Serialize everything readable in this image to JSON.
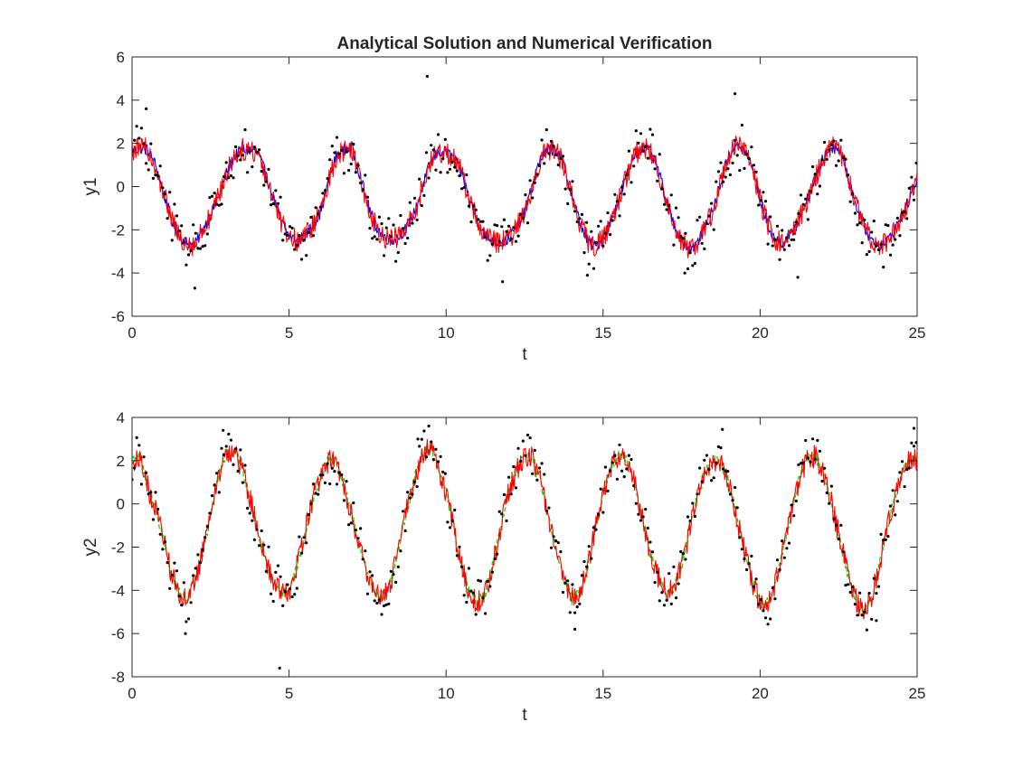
{
  "chart_data": [
    {
      "type": "line",
      "title": "Analytical Solution and Numerical Verification",
      "xlabel": "t",
      "ylabel": "y1",
      "xlim": [
        0,
        25
      ],
      "ylim": [
        -6,
        6
      ],
      "xticks": [
        0,
        5,
        10,
        15,
        20,
        25
      ],
      "yticks": [
        -6,
        -4,
        -2,
        0,
        2,
        4,
        6
      ],
      "grid": false,
      "legend": "none",
      "base": {
        "t": [
          0,
          0.25,
          0.5,
          0.75,
          1.0,
          1.25,
          1.5,
          1.75,
          2.0,
          2.25,
          2.5,
          2.75,
          3.0,
          3.25,
          3.5,
          3.75,
          4.0,
          4.25,
          4.5,
          4.75,
          5.0,
          5.25,
          5.5,
          5.75,
          6.0,
          6.25,
          6.5,
          6.75,
          7.0,
          7.25,
          7.5,
          7.75,
          8.0,
          8.25,
          8.5,
          8.75,
          9.0,
          9.25,
          9.5,
          9.75,
          10.0,
          10.25,
          10.5,
          10.75,
          11.0,
          11.25,
          11.5,
          11.75,
          12.0,
          12.25,
          12.5,
          12.75,
          13.0,
          13.25,
          13.5,
          13.75,
          14.0,
          14.25,
          14.5,
          14.75,
          15.0,
          15.25,
          15.5,
          15.75,
          16.0,
          16.25,
          16.5,
          16.75,
          17.0,
          17.25,
          17.5,
          17.75,
          18.0,
          18.25,
          18.5,
          18.75,
          19.0,
          19.25,
          19.5,
          19.75,
          20.0,
          20.25,
          20.5,
          20.75,
          21.0,
          21.25,
          21.5,
          21.75,
          22.0,
          22.25,
          22.5,
          22.75,
          23.0,
          23.25,
          23.5,
          23.75,
          24.0,
          24.25,
          24.5,
          24.75,
          25.0
        ],
        "y": [
          1.6,
          1.8,
          1.7,
          1.0,
          -0.3,
          -1.5,
          -2.3,
          -2.6,
          -2.7,
          -2.0,
          -1.3,
          -0.5,
          0.6,
          1.4,
          1.7,
          1.7,
          1.6,
          0.6,
          -0.5,
          -1.6,
          -2.3,
          -2.5,
          -2.3,
          -1.8,
          -1.2,
          0.2,
          1.4,
          1.7,
          1.8,
          0.6,
          -0.8,
          -1.8,
          -2.3,
          -2.5,
          -2.3,
          -1.9,
          -1.2,
          0.0,
          1.1,
          1.6,
          1.6,
          1.3,
          0.6,
          -0.6,
          -1.6,
          -2.3,
          -2.5,
          -2.6,
          -2.4,
          -1.9,
          -1.2,
          0.0,
          1.3,
          1.7,
          1.7,
          1.0,
          -0.4,
          -1.6,
          -2.5,
          -2.8,
          -2.4,
          -1.6,
          -0.6,
          0.5,
          1.5,
          1.8,
          1.6,
          0.8,
          -0.6,
          -1.7,
          -2.5,
          -2.9,
          -2.6,
          -1.9,
          -1.1,
          0.2,
          1.5,
          1.9,
          1.7,
          0.9,
          -0.6,
          -1.8,
          -2.5,
          -2.6,
          -2.2,
          -1.5,
          -0.6,
          0.3,
          1.3,
          1.8,
          1.8,
          0.8,
          -0.6,
          -1.6,
          -2.4,
          -2.7,
          -2.6,
          -2.1,
          -1.4,
          -0.6,
          0.4
        ]
      },
      "series": [
        {
          "color": "#0000ff",
          "style": "solid"
        },
        {
          "color": "#ff0000",
          "style": "solid"
        },
        {
          "color": "#000000",
          "style": "points"
        }
      ],
      "outliers": [
        {
          "t": 2.0,
          "y": -4.7
        },
        {
          "t": 9.4,
          "y": 5.1
        },
        {
          "t": 19.2,
          "y": 4.3
        },
        {
          "t": 0.45,
          "y": 3.6
        },
        {
          "t": 11.8,
          "y": -4.4
        },
        {
          "t": 14.5,
          "y": -4.1
        },
        {
          "t": 21.2,
          "y": -4.2
        },
        {
          "t": 17.6,
          "y": -4.0
        }
      ]
    },
    {
      "type": "line",
      "title": "",
      "xlabel": "t",
      "ylabel": "y2",
      "xlim": [
        0,
        25
      ],
      "ylim": [
        -8,
        4
      ],
      "xticks": [
        0,
        5,
        10,
        15,
        20,
        25
      ],
      "yticks": [
        -8,
        -6,
        -4,
        -2,
        0,
        2,
        4
      ],
      "grid": false,
      "legend": "none",
      "base": {
        "t": [
          0,
          0.25,
          0.5,
          0.75,
          1.0,
          1.25,
          1.5,
          1.75,
          2.0,
          2.25,
          2.5,
          2.75,
          3.0,
          3.25,
          3.5,
          3.75,
          4.0,
          4.25,
          4.5,
          4.75,
          5.0,
          5.25,
          5.5,
          5.75,
          6.0,
          6.25,
          6.5,
          6.75,
          7.0,
          7.25,
          7.5,
          7.75,
          8.0,
          8.25,
          8.5,
          8.75,
          9.0,
          9.25,
          9.5,
          9.75,
          10.0,
          10.25,
          10.5,
          10.75,
          11.0,
          11.25,
          11.5,
          11.75,
          12.0,
          12.25,
          12.5,
          12.75,
          13.0,
          13.25,
          13.5,
          13.75,
          14.0,
          14.25,
          14.5,
          14.75,
          15.0,
          15.25,
          15.5,
          15.75,
          16.0,
          16.25,
          16.5,
          16.75,
          17.0,
          17.25,
          17.5,
          17.75,
          18.0,
          18.25,
          18.5,
          18.75,
          19.0,
          19.25,
          19.5,
          19.75,
          20.0,
          20.25,
          20.5,
          20.75,
          21.0,
          21.25,
          21.5,
          21.75,
          22.0,
          22.25,
          22.5,
          22.75,
          23.0,
          23.25,
          23.5,
          23.75,
          24.0,
          24.25,
          24.5,
          24.75,
          25.0
        ],
        "y": [
          2.0,
          2.2,
          0.8,
          -0.3,
          -1.6,
          -3.2,
          -4.1,
          -4.4,
          -3.6,
          -2.2,
          -0.6,
          1.2,
          2.4,
          2.5,
          1.6,
          0.3,
          -1.2,
          -2.6,
          -3.6,
          -4.1,
          -4.0,
          -2.9,
          -1.4,
          0.2,
          1.3,
          2.0,
          1.9,
          0.9,
          -0.6,
          -2.0,
          -3.2,
          -4.1,
          -4.3,
          -3.6,
          -2.0,
          -0.3,
          1.2,
          2.3,
          2.6,
          1.7,
          0.5,
          -1.2,
          -2.9,
          -4.1,
          -4.6,
          -4.1,
          -2.8,
          -1.0,
          0.6,
          1.6,
          2.2,
          2.1,
          1.1,
          -0.5,
          -2.1,
          -3.5,
          -4.4,
          -4.2,
          -3.0,
          -1.2,
          0.4,
          1.7,
          2.3,
          2.1,
          1.0,
          -0.6,
          -2.2,
          -3.4,
          -4.0,
          -3.9,
          -2.9,
          -1.3,
          0.3,
          1.5,
          2.0,
          2.0,
          1.0,
          -0.6,
          -2.2,
          -3.6,
          -4.6,
          -4.6,
          -3.6,
          -2.0,
          -0.3,
          1.2,
          2.1,
          2.2,
          1.6,
          0.2,
          -1.4,
          -3.0,
          -4.3,
          -5.0,
          -4.6,
          -3.1,
          -1.4,
          0.1,
          1.3,
          2.1,
          2.0
        ]
      },
      "series": [
        {
          "color": "#00dd00",
          "style": "dashed"
        },
        {
          "color": "#ff0000",
          "style": "solid"
        },
        {
          "color": "#000000",
          "style": "points"
        }
      ],
      "outliers": [
        {
          "t": 4.7,
          "y": -7.6
        },
        {
          "t": 1.7,
          "y": -6.0
        },
        {
          "t": 14.1,
          "y": -5.8
        },
        {
          "t": 2.9,
          "y": 3.4
        },
        {
          "t": 18.8,
          "y": 3.45
        },
        {
          "t": 24.9,
          "y": 3.5
        },
        {
          "t": 9.1,
          "y": 3.0
        },
        {
          "t": 23.7,
          "y": -5.4
        }
      ]
    }
  ]
}
